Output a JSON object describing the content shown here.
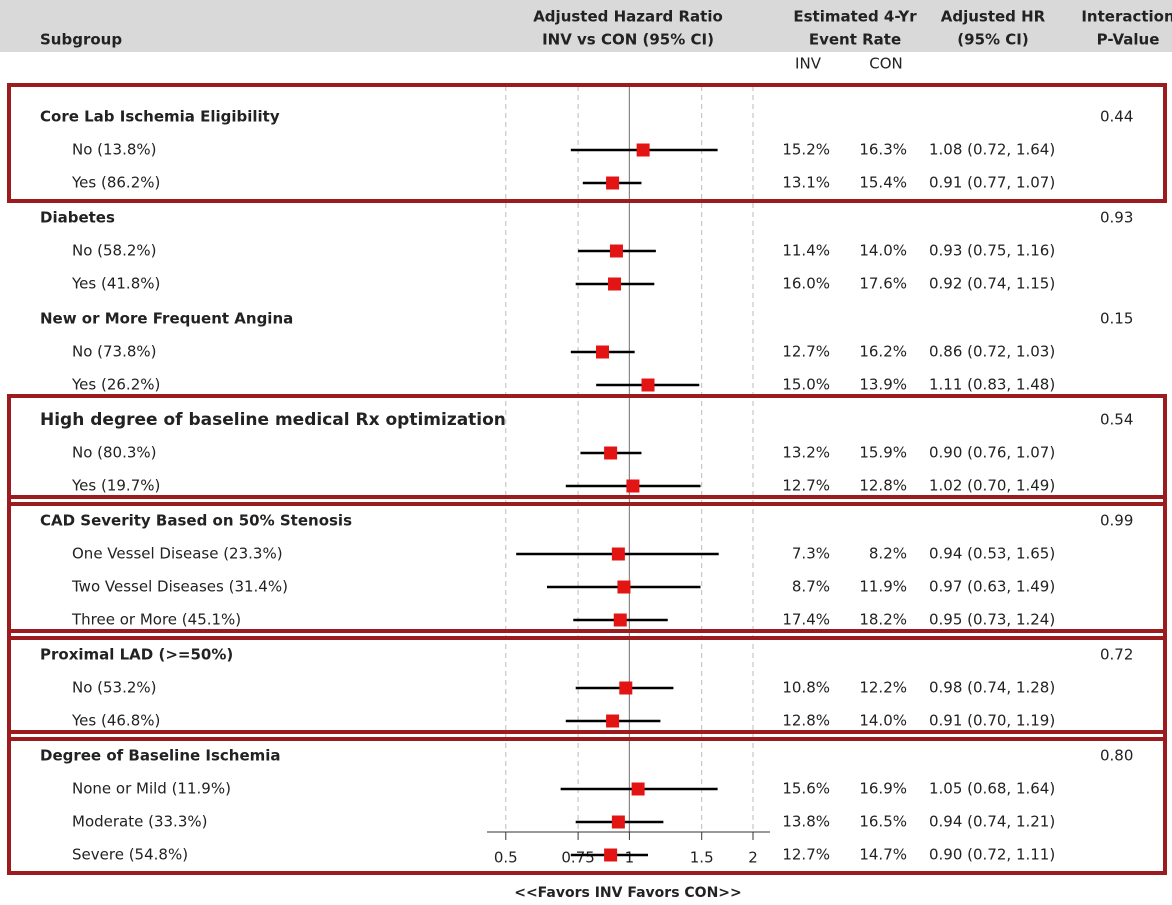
{
  "chart_data": {
    "type": "forest",
    "headers": {
      "subgroup": "Subgroup",
      "plot": [
        "Adjusted Hazard Ratio",
        "INV vs CON (95% CI)"
      ],
      "rate": [
        "Estimated 4-Yr",
        "Event Rate"
      ],
      "ci": [
        "Adjusted HR",
        "(95% CI)"
      ],
      "p": [
        "Interaction",
        "P-Value"
      ],
      "inv": "INV",
      "con": "CON"
    },
    "xlabel": "<<Favors INV   Favors CON>>",
    "xscale": "log",
    "xlim": [
      0.45,
      2.2
    ],
    "xticks": [
      0.5,
      0.75,
      1,
      1.5,
      2
    ],
    "ref_line": 1,
    "grid": true,
    "marker_color": "#e31414",
    "highlight_color": "#9b1b1e",
    "groups": [
      {
        "title": "Core Lab Ischemia Eligibility",
        "p": "0.44",
        "highlight": true,
        "items": [
          {
            "label": "No (13.8%)",
            "inv": "15.2%",
            "con": "16.3%",
            "ci": "1.08 (0.72, 1.64)",
            "hr": 1.08,
            "lo": 0.72,
            "hi": 1.64
          },
          {
            "label": "Yes (86.2%)",
            "inv": "13.1%",
            "con": "15.4%",
            "ci": "0.91 (0.77, 1.07)",
            "hr": 0.91,
            "lo": 0.77,
            "hi": 1.07
          }
        ]
      },
      {
        "title": "Diabetes",
        "p": "0.93",
        "highlight": false,
        "items": [
          {
            "label": "No (58.2%)",
            "inv": "11.4%",
            "con": "14.0%",
            "ci": "0.93 (0.75, 1.16)",
            "hr": 0.93,
            "lo": 0.75,
            "hi": 1.16
          },
          {
            "label": "Yes (41.8%)",
            "inv": "16.0%",
            "con": "17.6%",
            "ci": "0.92 (0.74, 1.15)",
            "hr": 0.92,
            "lo": 0.74,
            "hi": 1.15
          }
        ]
      },
      {
        "title": "New or More Frequent Angina",
        "p": "0.15",
        "highlight": false,
        "items": [
          {
            "label": "No (73.8%)",
            "inv": "12.7%",
            "con": "16.2%",
            "ci": "0.86 (0.72, 1.03)",
            "hr": 0.86,
            "lo": 0.72,
            "hi": 1.03
          },
          {
            "label": "Yes (26.2%)",
            "inv": "15.0%",
            "con": "13.9%",
            "ci": "1.11 (0.83, 1.48)",
            "hr": 1.11,
            "lo": 0.83,
            "hi": 1.48
          }
        ]
      },
      {
        "title": "High degree of baseline medical Rx optimization",
        "p": "0.54",
        "highlight": true,
        "items": [
          {
            "label": "No (80.3%)",
            "inv": "13.2%",
            "con": "15.9%",
            "ci": "0.90 (0.76, 1.07)",
            "hr": 0.9,
            "lo": 0.76,
            "hi": 1.07
          },
          {
            "label": "Yes (19.7%)",
            "inv": "12.7%",
            "con": "12.8%",
            "ci": "1.02 (0.70, 1.49)",
            "hr": 1.02,
            "lo": 0.7,
            "hi": 1.49
          }
        ]
      },
      {
        "title": "CAD Severity Based on 50% Stenosis",
        "p": "0.99",
        "highlight": true,
        "items": [
          {
            "label": "One Vessel Disease (23.3%)",
            "inv": "7.3%",
            "con": "8.2%",
            "ci": "0.94 (0.53, 1.65)",
            "hr": 0.94,
            "lo": 0.53,
            "hi": 1.65
          },
          {
            "label": "Two Vessel Diseases (31.4%)",
            "inv": "8.7%",
            "con": "11.9%",
            "ci": "0.97 (0.63, 1.49)",
            "hr": 0.97,
            "lo": 0.63,
            "hi": 1.49
          },
          {
            "label": "Three or More (45.1%)",
            "inv": "17.4%",
            "con": "18.2%",
            "ci": "0.95 (0.73, 1.24)",
            "hr": 0.95,
            "lo": 0.73,
            "hi": 1.24
          }
        ]
      },
      {
        "title": "Proximal LAD (>=50%)",
        "p": "0.72",
        "highlight": true,
        "items": [
          {
            "label": "No (53.2%)",
            "inv": "10.8%",
            "con": "12.2%",
            "ci": "0.98 (0.74, 1.28)",
            "hr": 0.98,
            "lo": 0.74,
            "hi": 1.28
          },
          {
            "label": "Yes (46.8%)",
            "inv": "12.8%",
            "con": "14.0%",
            "ci": "0.91 (0.70, 1.19)",
            "hr": 0.91,
            "lo": 0.7,
            "hi": 1.19
          }
        ]
      },
      {
        "title": "Degree of Baseline Ischemia",
        "p": "0.80",
        "highlight": true,
        "items": [
          {
            "label": "None or Mild (11.9%)",
            "inv": "15.6%",
            "con": "16.9%",
            "ci": "1.05 (0.68, 1.64)",
            "hr": 1.05,
            "lo": 0.68,
            "hi": 1.64
          },
          {
            "label": "Moderate (33.3%)",
            "inv": "13.8%",
            "con": "16.5%",
            "ci": "0.94 (0.74, 1.21)",
            "hr": 0.94,
            "lo": 0.74,
            "hi": 1.21
          },
          {
            "label": "Severe (54.8%)",
            "inv": "12.7%",
            "con": "14.7%",
            "ci": "0.90 (0.72, 1.11)",
            "hr": 0.9,
            "lo": 0.72,
            "hi": 1.11
          }
        ]
      }
    ]
  }
}
